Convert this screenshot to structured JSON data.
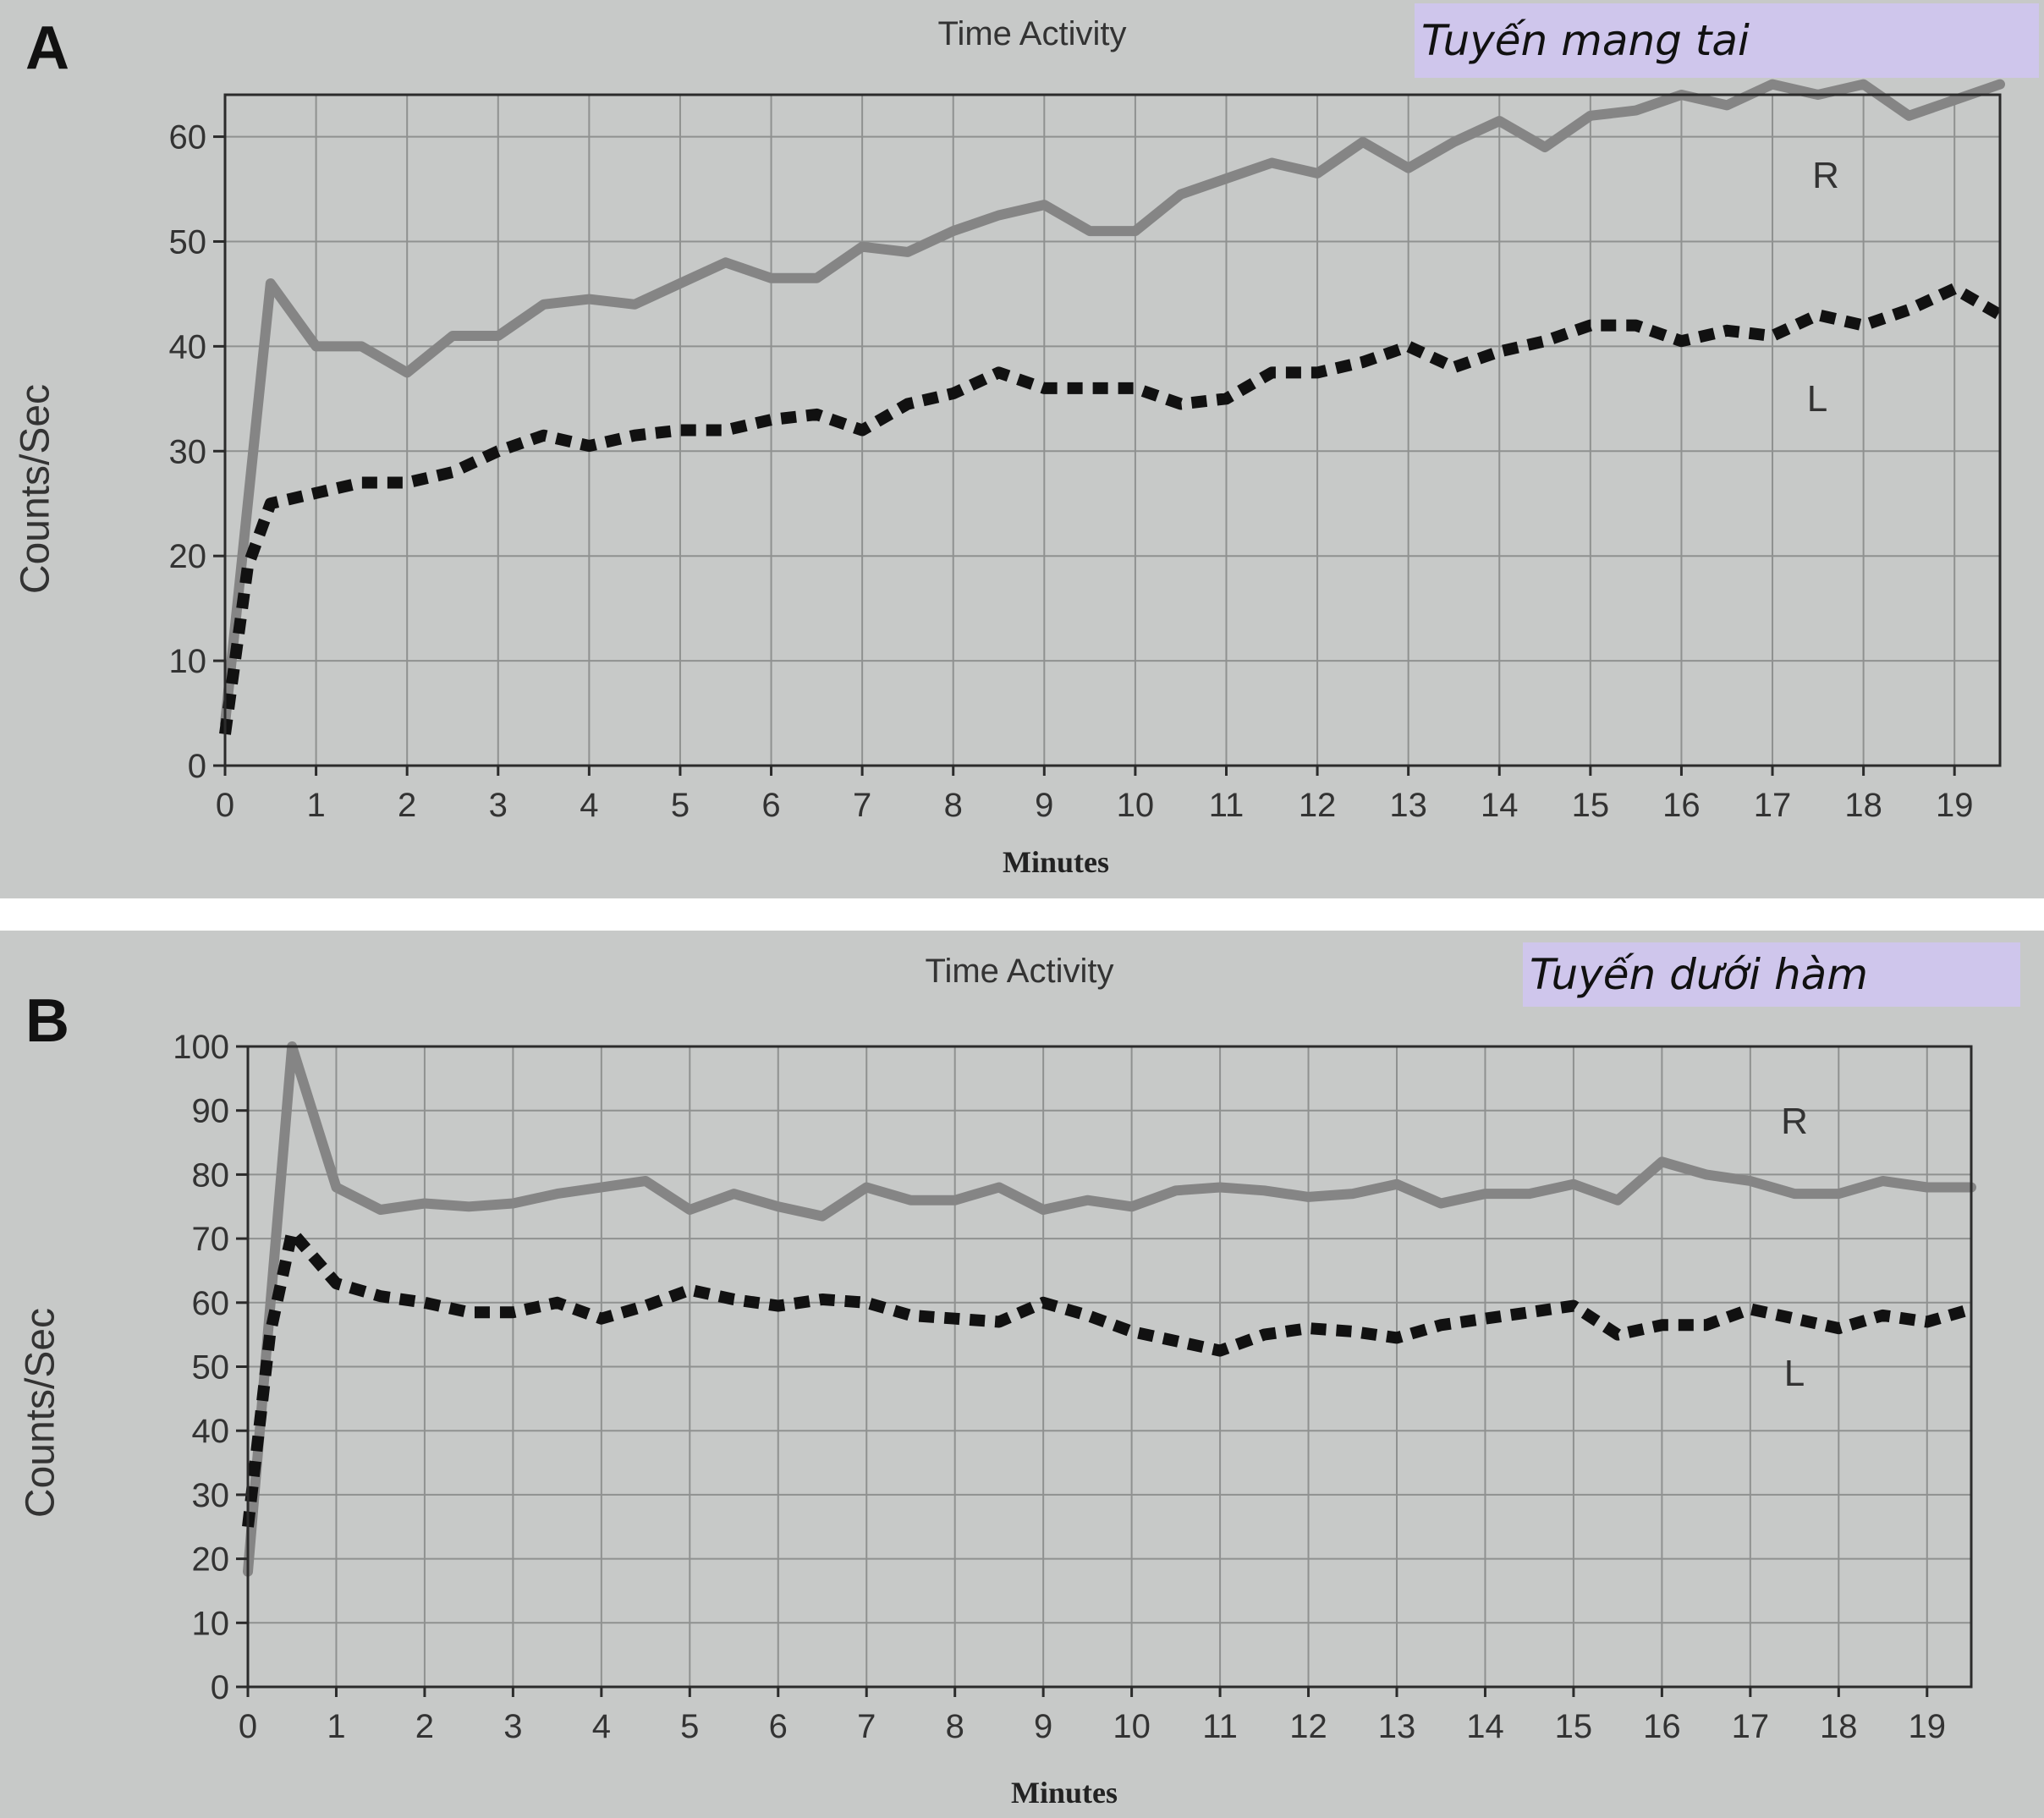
{
  "chart_data": [
    {
      "id": "A",
      "type": "line",
      "panel_letter": "A",
      "title": "Time Activity",
      "gland_label": "Tuyến mang tai",
      "xlabel": "Minutes",
      "ylabel": "Counts/Sec",
      "xlim": [
        0,
        19.5
      ],
      "ylim": [
        0,
        64
      ],
      "xticks": [
        0,
        1,
        2,
        3,
        4,
        5,
        6,
        7,
        8,
        9,
        10,
        11,
        12,
        13,
        14,
        15,
        16,
        17,
        18,
        19
      ],
      "yticks": [
        0,
        10,
        20,
        30,
        40,
        50,
        60
      ],
      "grid": true,
      "series": [
        {
          "name": "R",
          "style": "solid",
          "color": "#858585",
          "x": [
            0,
            0.5,
            1,
            1.5,
            2,
            2.5,
            3,
            3.5,
            4,
            4.5,
            5,
            5.5,
            6,
            6.5,
            7,
            7.5,
            8,
            8.5,
            9,
            9.5,
            10,
            10.5,
            11,
            11.5,
            12,
            12.5,
            13,
            13.5,
            14,
            14.5,
            15,
            15.5,
            16,
            16.5,
            17,
            17.5,
            18,
            18.5,
            19,
            19.5
          ],
          "y": [
            4,
            46,
            40,
            40,
            37.5,
            41,
            41,
            44,
            44.5,
            44,
            46,
            48,
            46.5,
            46.5,
            49.5,
            49,
            51,
            52.5,
            53.5,
            51,
            51,
            54.5,
            56,
            57.5,
            56.5,
            59.5,
            57,
            59.5,
            61.5,
            59,
            62,
            62.5,
            64,
            63,
            65,
            64,
            65,
            62,
            63.5,
            65
          ]
        },
        {
          "name": "L",
          "style": "dotted",
          "color": "#111111",
          "x": [
            0,
            0.25,
            0.5,
            1,
            1.5,
            2,
            2.5,
            3,
            3.5,
            4,
            4.5,
            5,
            5.5,
            6,
            6.5,
            7,
            7.5,
            8,
            8.5,
            9,
            9.5,
            10,
            10.5,
            11,
            11.5,
            12,
            12.5,
            13,
            13.5,
            14,
            14.5,
            15,
            15.5,
            16,
            16.5,
            17,
            17.5,
            18,
            18.5,
            19,
            19.5
          ],
          "y": [
            3,
            19,
            25,
            26,
            27,
            27,
            28,
            30,
            31.5,
            30.5,
            31.5,
            32,
            32,
            33,
            33.5,
            32,
            34.5,
            35.5,
            37.5,
            36,
            36,
            36,
            34.5,
            35,
            37.5,
            37.5,
            38.5,
            40,
            38,
            39.5,
            40.5,
            42,
            42,
            40.5,
            41.5,
            41,
            43,
            42,
            43.5,
            45.5,
            43
          ]
        }
      ],
      "series_labels": [
        {
          "text": "R",
          "x": 17.6,
          "y": 56.5
        },
        {
          "text": "L",
          "x": 17.55,
          "y": 35
        }
      ]
    },
    {
      "id": "B",
      "type": "line",
      "panel_letter": "B",
      "title": "Time Activity",
      "gland_label": "Tuyến dưới hàm",
      "xlabel": "Minutes",
      "ylabel": "Counts/Sec",
      "xlim": [
        0,
        19.5
      ],
      "ylim": [
        0,
        100
      ],
      "xticks": [
        0,
        1,
        2,
        3,
        4,
        5,
        6,
        7,
        8,
        9,
        10,
        11,
        12,
        13,
        14,
        15,
        16,
        17,
        18,
        19
      ],
      "yticks": [
        0,
        10,
        20,
        30,
        40,
        50,
        60,
        70,
        80,
        90,
        100
      ],
      "grid": true,
      "series": [
        {
          "name": "R",
          "style": "solid",
          "color": "#858585",
          "x": [
            0,
            0.5,
            1,
            1.5,
            2,
            2.5,
            3,
            3.5,
            4,
            4.5,
            5,
            5.5,
            6,
            6.5,
            7,
            7.5,
            8,
            8.5,
            9,
            9.5,
            10,
            10.5,
            11,
            11.5,
            12,
            12.5,
            13,
            13.5,
            14,
            14.5,
            15,
            15.5,
            16,
            16.5,
            17,
            17.5,
            18,
            18.5,
            19,
            19.5
          ],
          "y": [
            18,
            100,
            78,
            74.5,
            75.5,
            75,
            75.5,
            77,
            78,
            79,
            74.5,
            77,
            75,
            73.5,
            78,
            76,
            76,
            78,
            74.5,
            76,
            75,
            77.5,
            78,
            77.5,
            76.5,
            77,
            78.5,
            75.5,
            77,
            77,
            78.5,
            76,
            82,
            80,
            79,
            77,
            77,
            79,
            78,
            78
          ]
        },
        {
          "name": "L",
          "style": "dotted",
          "color": "#111111",
          "x": [
            0,
            0.25,
            0.5,
            1,
            1.5,
            2,
            2.5,
            3,
            3.5,
            4,
            4.5,
            5,
            5.5,
            6,
            6.5,
            7,
            7.5,
            8,
            8.5,
            9,
            9.5,
            10,
            10.5,
            11,
            11.5,
            12,
            12.5,
            13,
            13.5,
            14,
            14.5,
            15,
            15.5,
            16,
            16.5,
            17,
            17.5,
            18,
            18.5,
            19,
            19.5
          ],
          "y": [
            25,
            55,
            71,
            63,
            61,
            60,
            58.5,
            58.5,
            60,
            57.5,
            59.5,
            62,
            60.5,
            59.5,
            60.5,
            60,
            58,
            57.5,
            57,
            60,
            58,
            55.5,
            54,
            52.5,
            55,
            56,
            55.5,
            54.5,
            56.5,
            57.5,
            58.5,
            59.5,
            55,
            56.5,
            56.5,
            59,
            57.5,
            56,
            58,
            57,
            59
          ]
        }
      ],
      "series_labels": [
        {
          "text": "R",
          "x": 17.5,
          "y": 89
        },
        {
          "text": "L",
          "x": 17.5,
          "y": 49
        }
      ]
    }
  ]
}
